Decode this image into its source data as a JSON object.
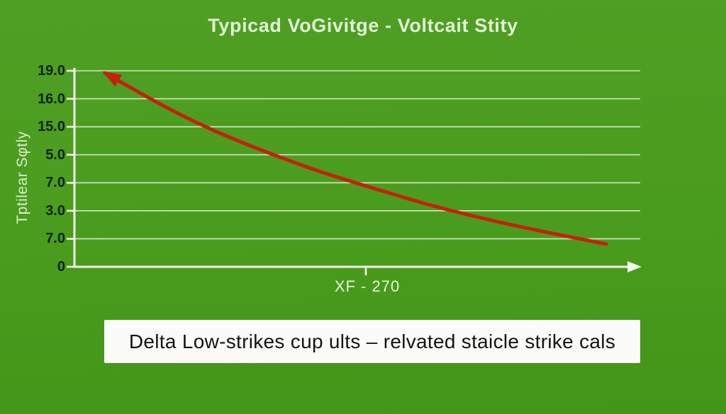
{
  "title": "Typicad VoGivitge - Voltcait Stity",
  "caption": "Delta Low-strikes cup ults – relvated staicle strike cals",
  "colors": {
    "background": "#4a9c1e",
    "axis": "#f2f9ec",
    "gridline": "#e9f5de",
    "curve": "#c6200e",
    "tick_label": "#0e2406",
    "title_text": "#e2f3d6",
    "caption_background": "#fbfcf7",
    "caption_text": "#141414"
  },
  "chart_data": {
    "type": "line",
    "title": "Typicad VoGivitge - Voltcait Stity",
    "xlabel": "XF - 270",
    "ylabel": "Tptilear Sφtly",
    "y_tick_labels": [
      "19.0",
      "16.0",
      "15.0",
      "5.0",
      "7.0",
      "3.0",
      "7.0",
      "0"
    ],
    "x_tick_labels": [
      "XF - 270"
    ],
    "grid": true,
    "legend": false,
    "x_axis_arrow": true,
    "series": [
      {
        "name": "descending-curve",
        "color": "#c6200e",
        "arrow_at_start": true,
        "points_pct": [
          [
            5.4,
            98.9
          ],
          [
            11.9,
            88.1
          ],
          [
            18.2,
            78.3
          ],
          [
            24.4,
            69.7
          ],
          [
            30.7,
            62.1
          ],
          [
            37.0,
            55.2
          ],
          [
            43.2,
            48.7
          ],
          [
            49.5,
            43.0
          ],
          [
            55.8,
            37.5
          ],
          [
            62.0,
            32.1
          ],
          [
            68.3,
            27.4
          ],
          [
            74.6,
            23.1
          ],
          [
            80.8,
            19.2
          ],
          [
            87.1,
            15.5
          ],
          [
            94.0,
            11.6
          ]
        ]
      }
    ]
  }
}
